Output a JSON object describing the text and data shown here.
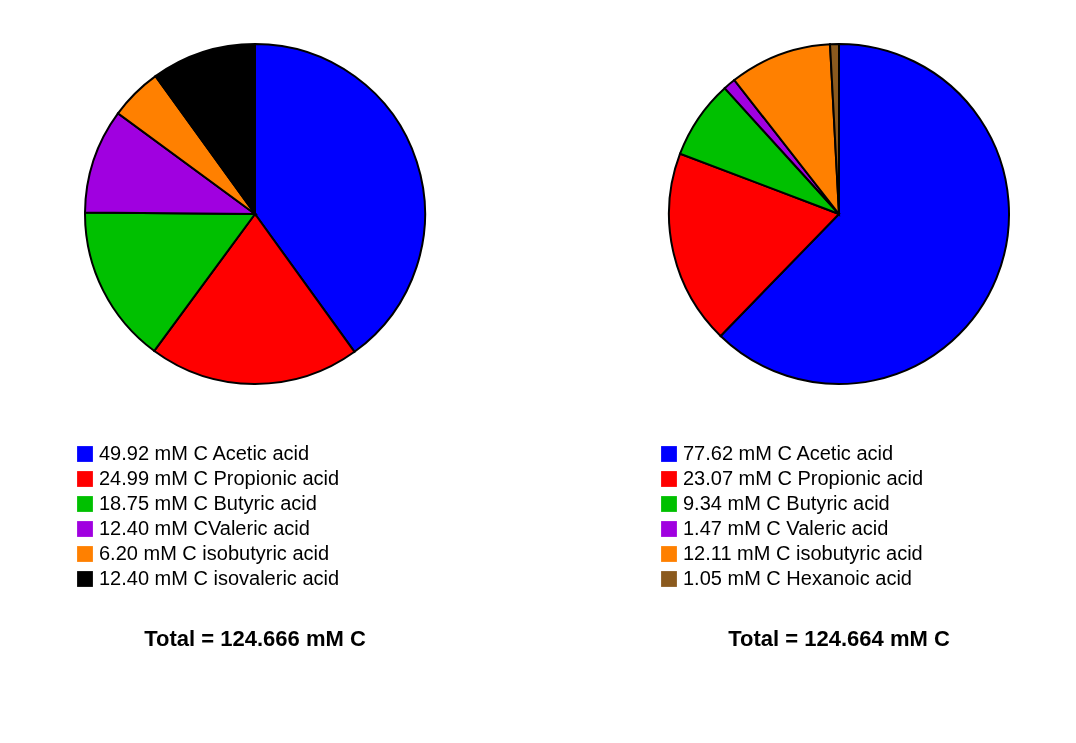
{
  "chart_data": [
    {
      "type": "pie",
      "title": "Total = 124.666 mM C",
      "legend": "bottom",
      "categories": [
        "49.92 mM C Acetic acid",
        "24.99 mM C Propionic acid",
        "18.75 mM C Butyric acid",
        "12.40 mM CValeric acid",
        "6.20 mM C isobutyric acid",
        "12.40 mM C isovaleric acid"
      ],
      "values": [
        49.92,
        24.99,
        18.75,
        12.4,
        6.2,
        12.4
      ],
      "colors": [
        "#0000ff",
        "#ff0000",
        "#00c000",
        "#a000e0",
        "#ff8000",
        "#000000"
      ]
    },
    {
      "type": "pie",
      "title": "Total = 124.664 mM C",
      "legend": "bottom",
      "categories": [
        "77.62 mM C Acetic acid",
        "23.07 mM C Propionic acid",
        "9.34 mM C Butyric acid",
        "1.47 mM C Valeric acid",
        "12.11 mM C isobutyric acid",
        "1.05 mM C Hexanoic acid"
      ],
      "values": [
        77.62,
        23.07,
        9.34,
        1.47,
        12.11,
        1.05
      ],
      "colors": [
        "#0000ff",
        "#ff0000",
        "#00c000",
        "#a000e0",
        "#ff8000",
        "#8b5a1e"
      ]
    }
  ]
}
